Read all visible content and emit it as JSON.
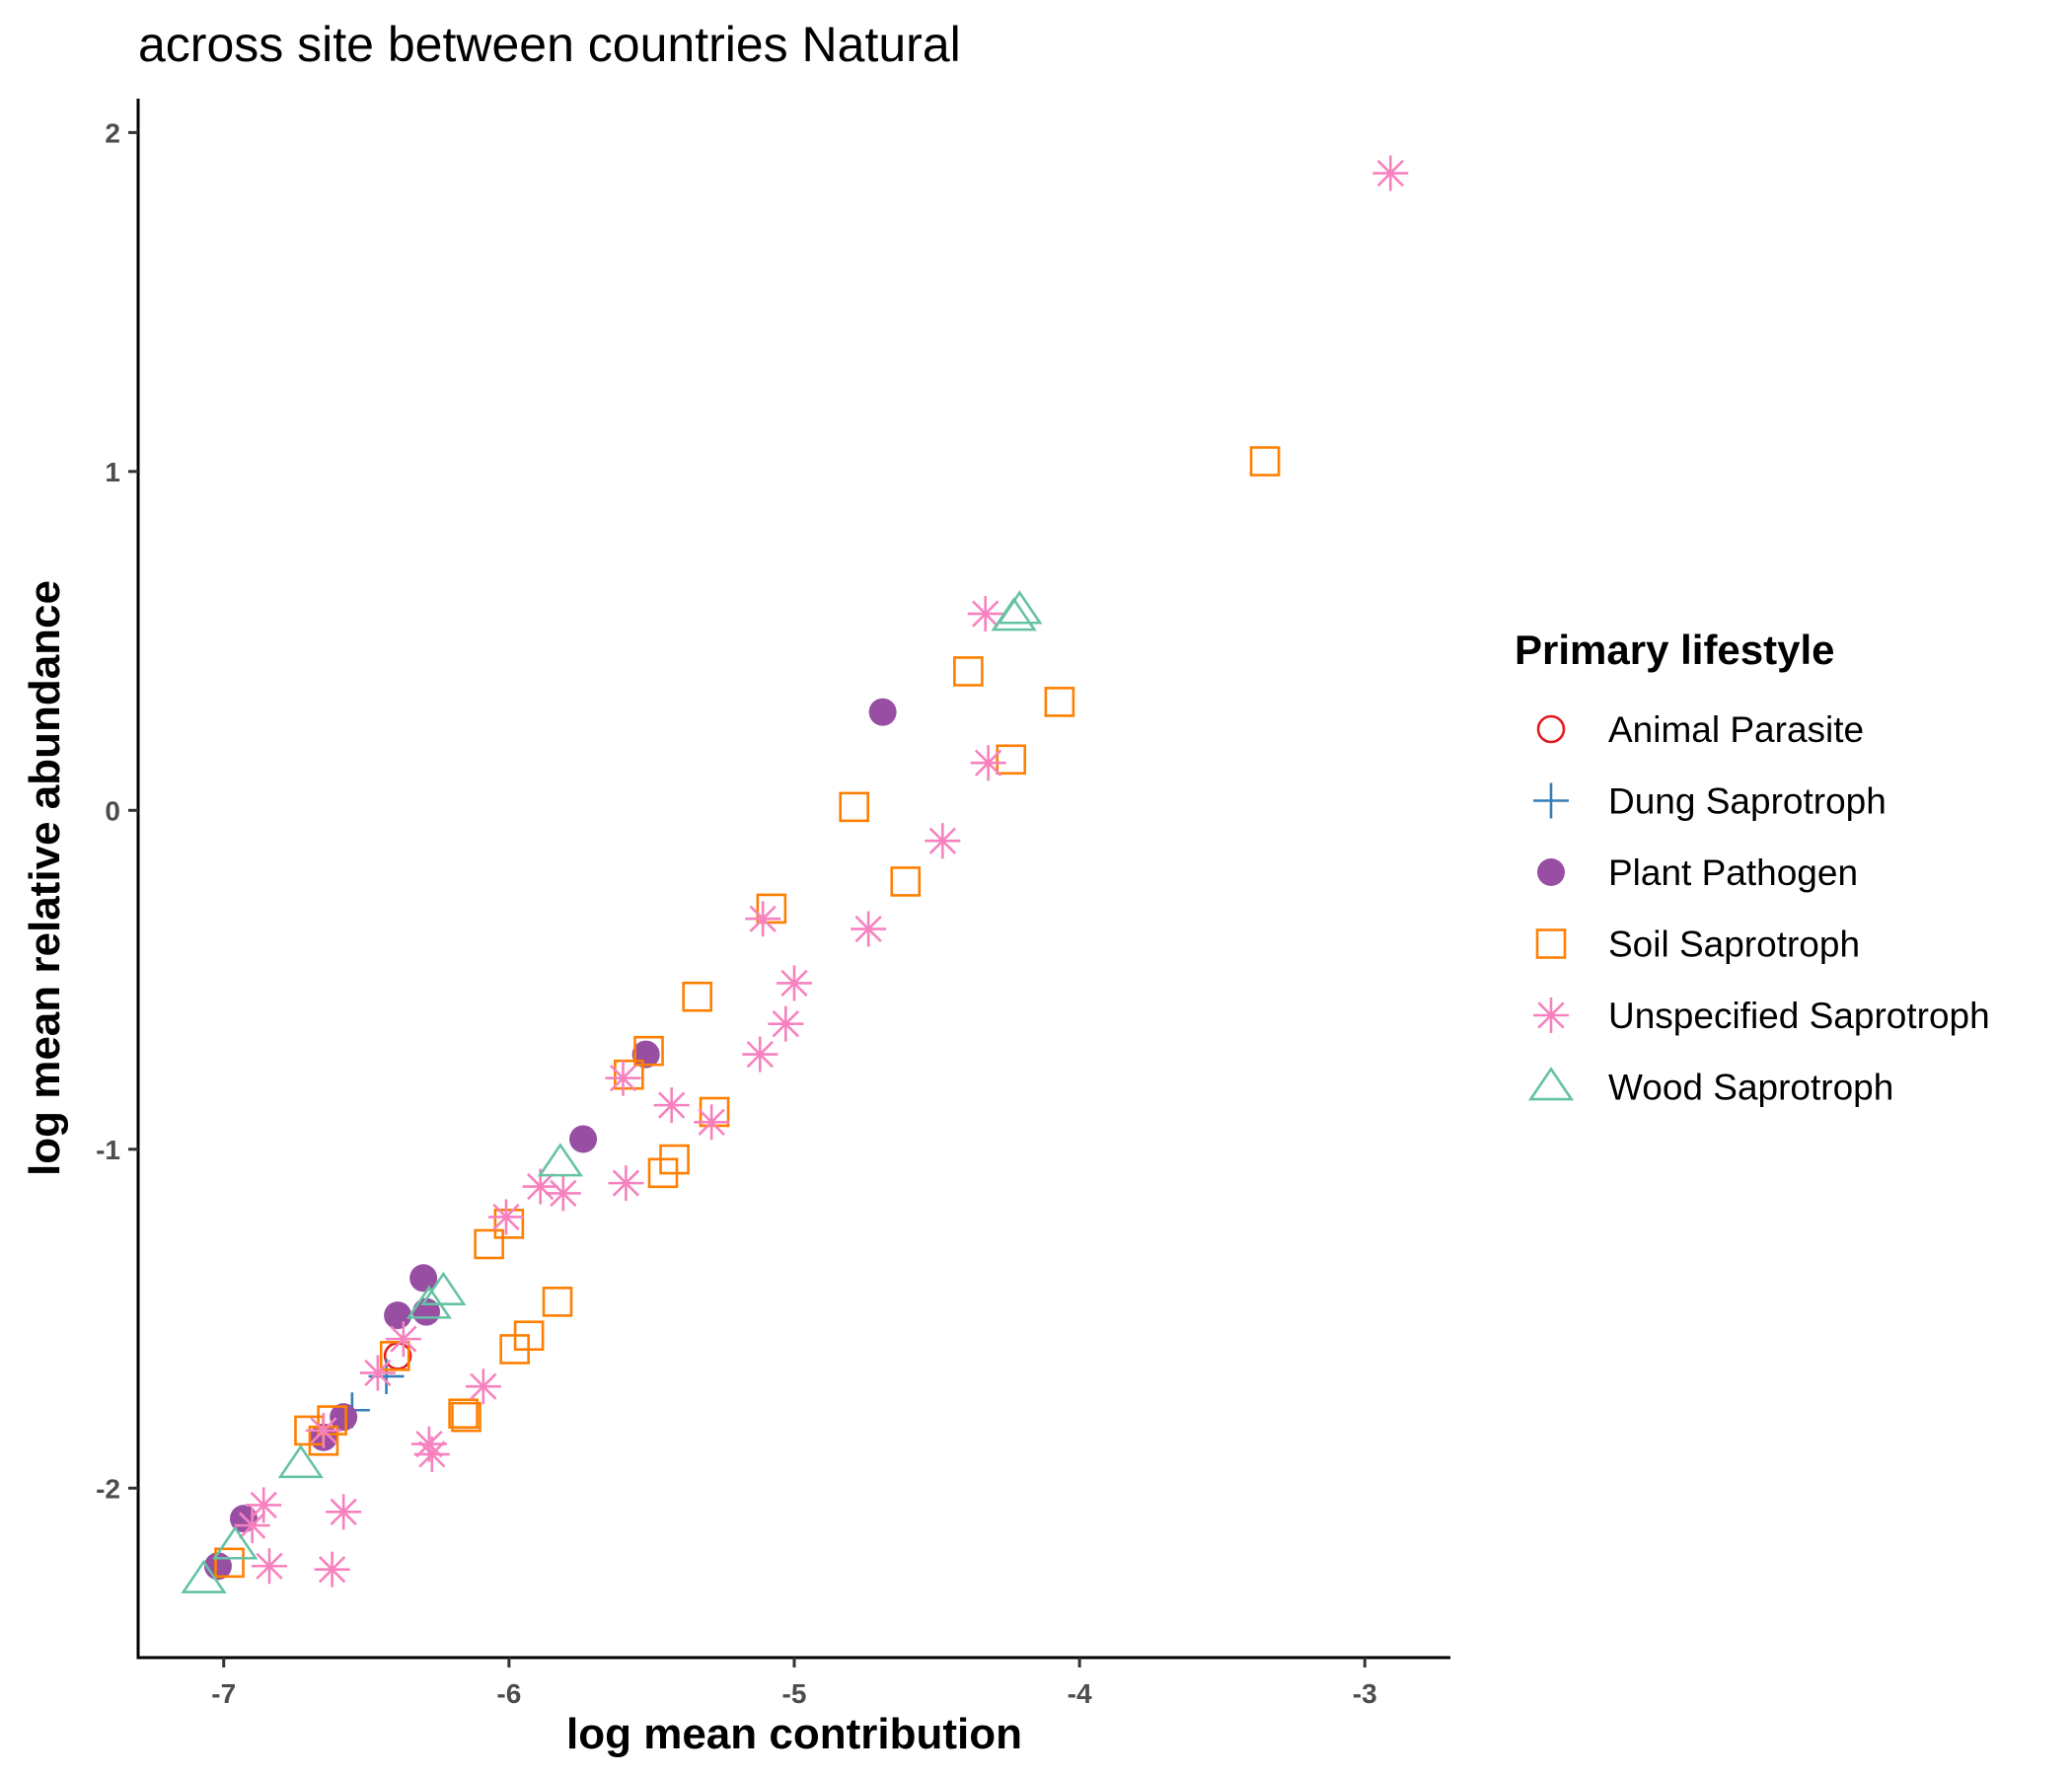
{
  "chart_data": {
    "type": "scatter",
    "title": "across site between countries Natural",
    "xlabel": "log mean contribution",
    "ylabel": "log mean relative abundance",
    "xlim": [
      -7.3,
      -2.7
    ],
    "ylim": [
      -2.5,
      2.1
    ],
    "xticks": [
      -7,
      -6,
      -5,
      -4,
      -3
    ],
    "yticks": [
      -2,
      -1,
      0,
      1,
      2
    ],
    "xtick_labels": [
      "-7",
      "-6",
      "-5",
      "-4",
      "-3"
    ],
    "ytick_labels": [
      "-2",
      "-1",
      "0",
      "1",
      "2"
    ],
    "grid": false,
    "legend_title": "Primary lifestyle",
    "legend_position": "right",
    "series": [
      {
        "name": "Animal Parasite",
        "shape": "open-circle",
        "color": "#e41a1c",
        "points": [
          [
            -6.39,
            -1.61
          ]
        ]
      },
      {
        "name": "Dung Saprotroph",
        "shape": "plus",
        "color": "#377eb8",
        "points": [
          [
            -6.55,
            -1.77
          ],
          [
            -6.43,
            -1.67
          ]
        ]
      },
      {
        "name": "Plant Pathogen",
        "shape": "filled-circle",
        "color": "#984ea3",
        "points": [
          [
            -7.02,
            -2.23
          ],
          [
            -6.93,
            -2.09
          ],
          [
            -6.65,
            -1.85
          ],
          [
            -6.58,
            -1.79
          ],
          [
            -6.39,
            -1.49
          ],
          [
            -6.3,
            -1.38
          ],
          [
            -6.29,
            -1.48
          ],
          [
            -5.74,
            -0.97
          ],
          [
            -5.52,
            -0.72
          ],
          [
            -4.69,
            0.29
          ]
        ]
      },
      {
        "name": "Soil Saprotroph",
        "shape": "open-square",
        "color": "#ff7f00",
        "points": [
          [
            -6.98,
            -2.22
          ],
          [
            -6.7,
            -1.83
          ],
          [
            -6.65,
            -1.86
          ],
          [
            -6.62,
            -1.8
          ],
          [
            -6.4,
            -1.61
          ],
          [
            -6.16,
            -1.78
          ],
          [
            -6.15,
            -1.79
          ],
          [
            -6.07,
            -1.28
          ],
          [
            -6.0,
            -1.22
          ],
          [
            -5.98,
            -1.59
          ],
          [
            -5.93,
            -1.55
          ],
          [
            -5.83,
            -1.45
          ],
          [
            -5.58,
            -0.78
          ],
          [
            -5.51,
            -0.71
          ],
          [
            -5.46,
            -1.07
          ],
          [
            -5.42,
            -1.03
          ],
          [
            -5.34,
            -0.55
          ],
          [
            -5.28,
            -0.89
          ],
          [
            -5.08,
            -0.29
          ],
          [
            -4.79,
            0.01
          ],
          [
            -4.61,
            -0.21
          ],
          [
            -4.39,
            0.41
          ],
          [
            -4.24,
            0.15
          ],
          [
            -4.07,
            0.32
          ],
          [
            -3.35,
            1.03
          ]
        ]
      },
      {
        "name": "Unspecified Saprotroph",
        "shape": "asterisk",
        "color": "#f781bf",
        "points": [
          [
            -6.9,
            -2.11
          ],
          [
            -6.86,
            -2.05
          ],
          [
            -6.84,
            -2.23
          ],
          [
            -6.65,
            -1.83
          ],
          [
            -6.62,
            -2.24
          ],
          [
            -6.58,
            -2.07
          ],
          [
            -6.46,
            -1.66
          ],
          [
            -6.37,
            -1.56
          ],
          [
            -6.28,
            -1.87
          ],
          [
            -6.27,
            -1.9
          ],
          [
            -6.09,
            -1.7
          ],
          [
            -6.01,
            -1.2
          ],
          [
            -5.89,
            -1.11
          ],
          [
            -5.81,
            -1.13
          ],
          [
            -5.6,
            -0.79
          ],
          [
            -5.59,
            -1.1
          ],
          [
            -5.43,
            -0.87
          ],
          [
            -5.29,
            -0.92
          ],
          [
            -5.12,
            -0.72
          ],
          [
            -5.11,
            -0.32
          ],
          [
            -5.03,
            -0.63
          ],
          [
            -5.0,
            -0.51
          ],
          [
            -4.74,
            -0.35
          ],
          [
            -4.48,
            -0.09
          ],
          [
            -4.32,
            0.14
          ],
          [
            -4.33,
            0.58
          ],
          [
            -2.91,
            1.88
          ]
        ]
      },
      {
        "name": "Wood Saprotroph",
        "shape": "open-triangle",
        "color": "#66c2a5",
        "points": [
          [
            -7.07,
            -2.27
          ],
          [
            -6.96,
            -2.17
          ],
          [
            -6.73,
            -1.93
          ],
          [
            -6.28,
            -1.46
          ],
          [
            -6.23,
            -1.42
          ],
          [
            -5.82,
            -1.04
          ],
          [
            -4.23,
            0.57
          ],
          [
            -4.21,
            0.59
          ]
        ]
      }
    ]
  }
}
